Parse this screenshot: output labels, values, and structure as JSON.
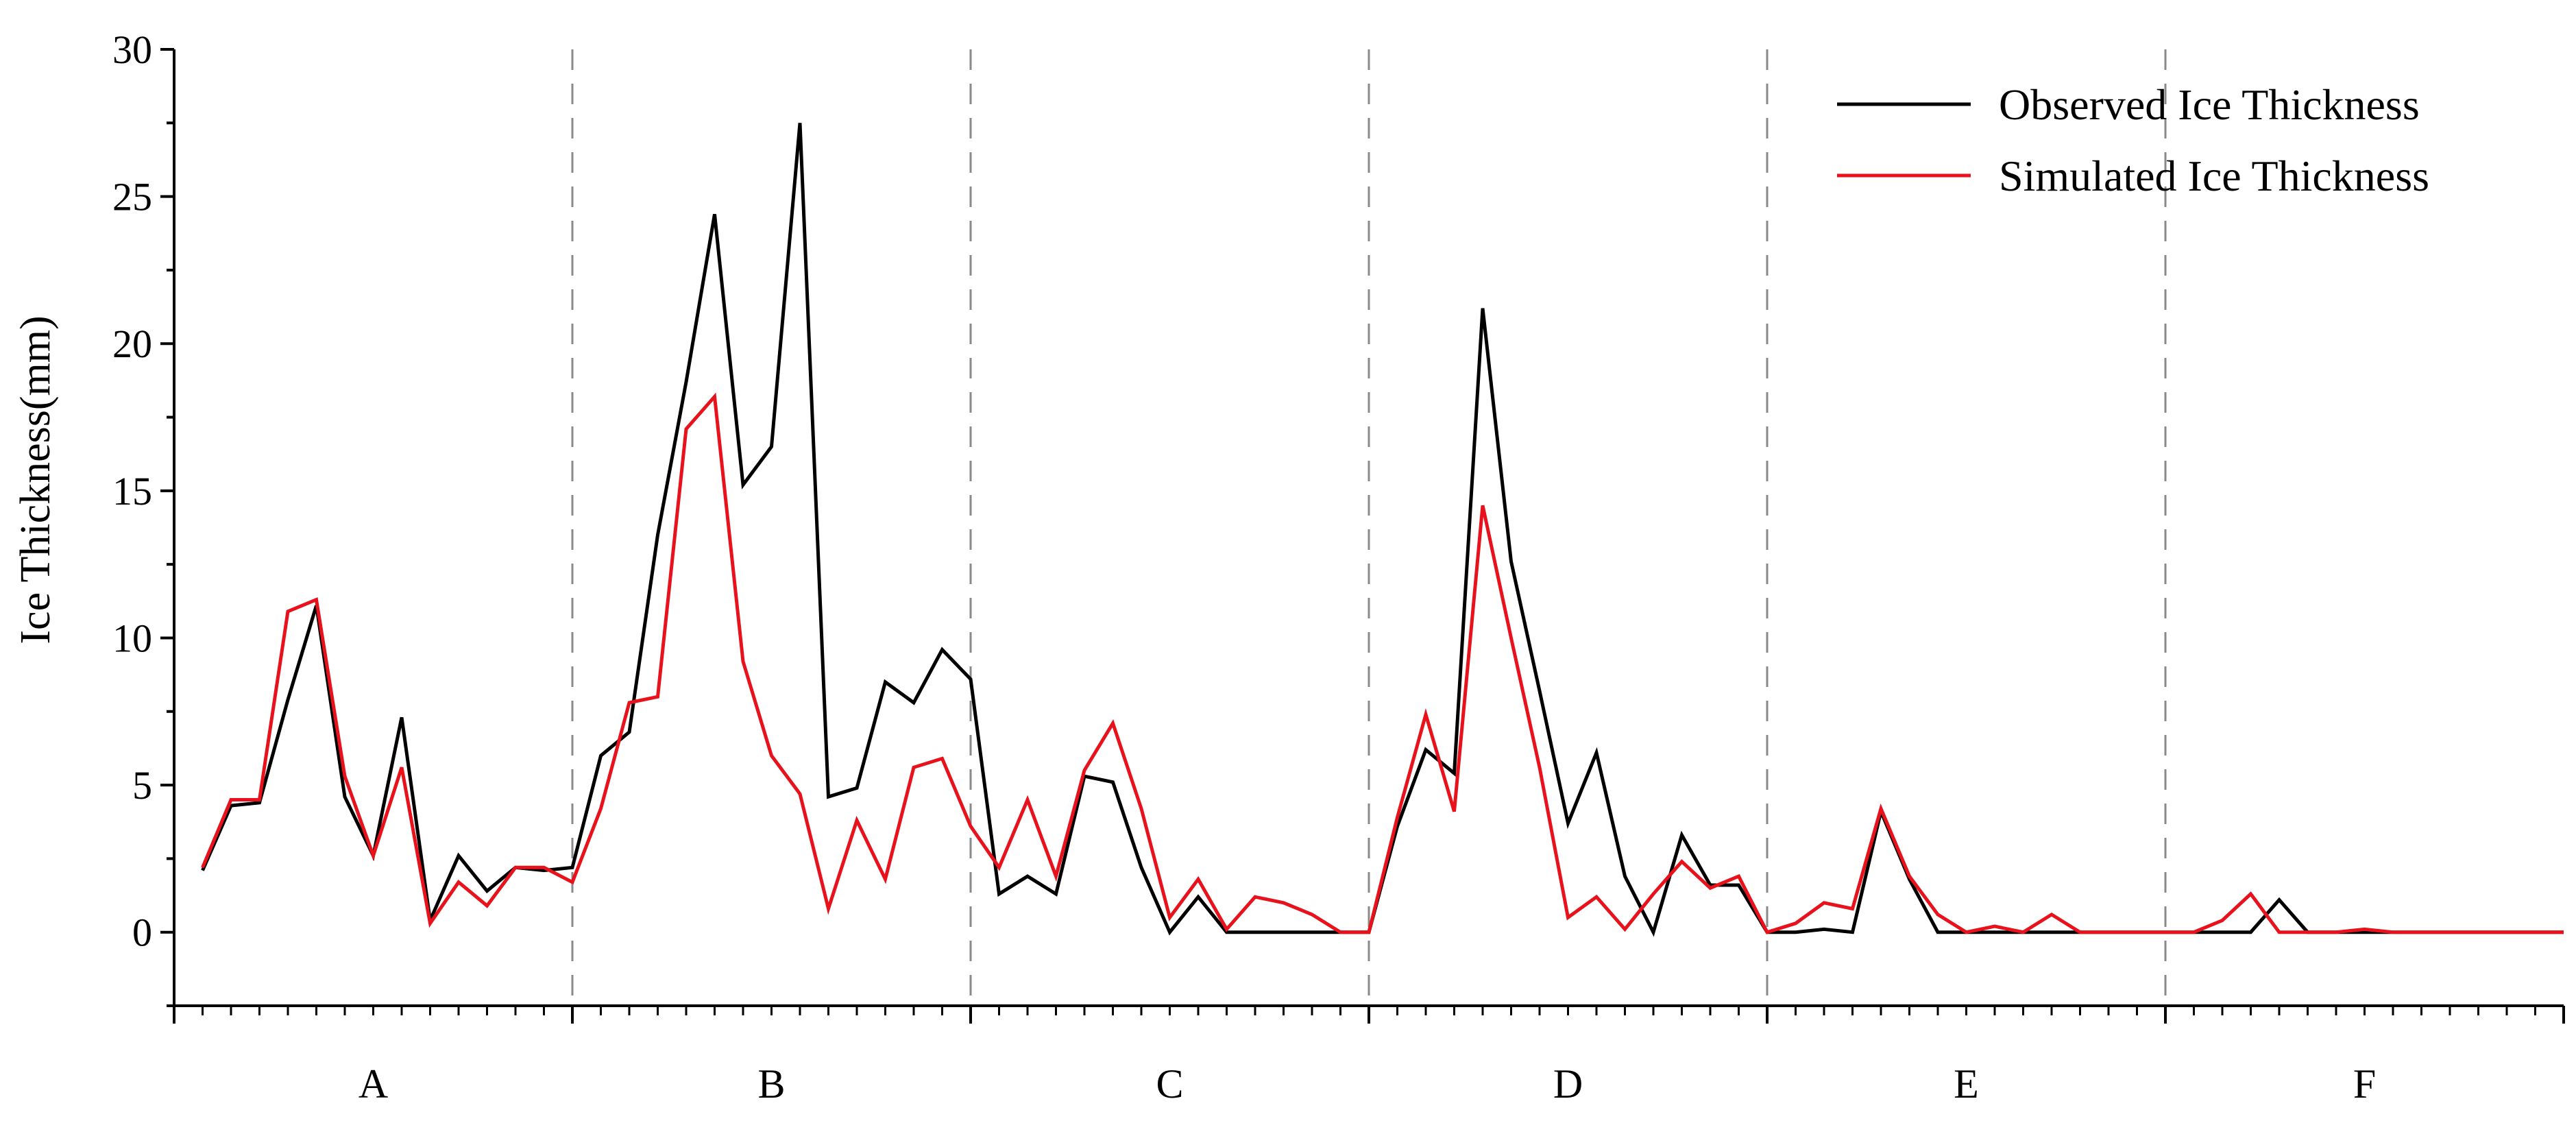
{
  "chart_data": {
    "type": "line",
    "title": "",
    "xlabel": "",
    "ylabel": "Ice Thickness(mm)",
    "ylim": [
      -2.5,
      30
    ],
    "yticks": [
      0,
      5,
      10,
      15,
      20,
      25,
      30
    ],
    "ytick_labels": [
      "0",
      "5",
      "10",
      "15",
      "20",
      "25",
      "30"
    ],
    "grid": false,
    "legend_position": "top-right",
    "groups": [
      "A",
      "B",
      "C",
      "D",
      "E",
      "F"
    ],
    "points_per_group": 14,
    "series": [
      {
        "name": "Observed Ice Thickness",
        "color": "#000000",
        "values": [
          2.1,
          4.3,
          4.4,
          7.9,
          11.1,
          4.6,
          2.6,
          7.3,
          0.4,
          2.6,
          1.4,
          2.2,
          2.1,
          2.2,
          6.0,
          6.8,
          13.5,
          18.7,
          24.4,
          15.2,
          16.5,
          27.5,
          4.6,
          4.9,
          8.5,
          7.8,
          9.6,
          8.6,
          1.3,
          1.9,
          1.3,
          5.3,
          5.1,
          2.2,
          0.0,
          1.2,
          0.0,
          0.0,
          0.0,
          0.0,
          0.0,
          0.0,
          3.6,
          6.2,
          5.4,
          21.2,
          12.6,
          8.2,
          3.7,
          6.1,
          1.9,
          0.0,
          3.3,
          1.6,
          1.6,
          0.0,
          0.0,
          0.1,
          0.0,
          4.1,
          1.8,
          0.0,
          0.0,
          0.0,
          0.0,
          0.0,
          0.0,
          0.0,
          0.0,
          0.0,
          0.0,
          0.0,
          0.0,
          1.1,
          0.0,
          0.0,
          0.0,
          0.0,
          0.0,
          0.0,
          0.0,
          0.0,
          0.0,
          0.0
        ]
      },
      {
        "name": "Simulated Ice Thickness",
        "color": "#e8121c",
        "values": [
          2.2,
          4.5,
          4.5,
          10.9,
          11.3,
          5.3,
          2.6,
          5.6,
          0.3,
          1.7,
          0.9,
          2.2,
          2.2,
          1.7,
          4.2,
          7.8,
          8.0,
          17.1,
          18.2,
          9.2,
          6.0,
          4.7,
          0.8,
          3.8,
          1.8,
          5.6,
          5.9,
          3.6,
          2.2,
          4.5,
          1.9,
          5.5,
          7.1,
          4.2,
          0.5,
          1.8,
          0.1,
          1.2,
          1.0,
          0.6,
          0.0,
          0.0,
          3.9,
          7.4,
          4.1,
          14.5,
          10.0,
          5.6,
          0.5,
          1.2,
          0.1,
          1.3,
          2.4,
          1.5,
          1.9,
          0.0,
          0.3,
          1.0,
          0.8,
          4.2,
          1.9,
          0.6,
          0.0,
          0.2,
          0.0,
          0.6,
          0.0,
          0.0,
          0.0,
          0.0,
          0.0,
          0.4,
          1.3,
          0.0,
          0.0,
          0.0,
          0.1,
          0.0,
          0.0,
          0.0,
          0.0,
          0.0,
          0.0,
          0.0
        ]
      }
    ]
  }
}
